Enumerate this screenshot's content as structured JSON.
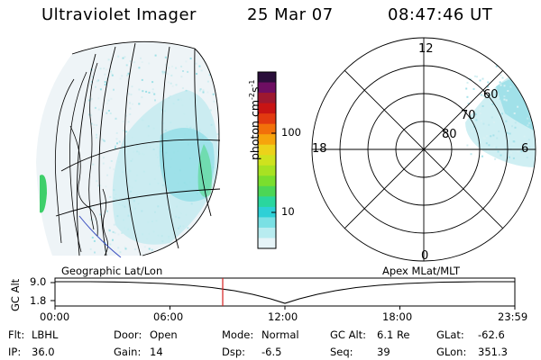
{
  "header": {
    "title": "Ultraviolet Imager",
    "date": "25 Mar 07",
    "time": "08:47:46 UT"
  },
  "colorbar": {
    "label": "photon cm",
    "unit_sup_1": "-2",
    "unit_mid": "s",
    "unit_sup_2": "-1",
    "ticks": [
      "100",
      "10"
    ],
    "colors": [
      "#2a0e3a",
      "#6e0e62",
      "#9e1830",
      "#c81414",
      "#e23a10",
      "#f2700a",
      "#f6a40c",
      "#ecd21a",
      "#cfe21e",
      "#a8e222",
      "#7ade2e",
      "#4cd656",
      "#2ad69e",
      "#2ed0d6",
      "#7ae0e4",
      "#b8ecf0",
      "#e6f4f8"
    ]
  },
  "polar": {
    "mlt_labels": [
      "12",
      "18",
      "6",
      "0"
    ],
    "mlat_labels": [
      "60",
      "70",
      "80"
    ]
  },
  "timeline": {
    "left_label": "Geographic Lat/Lon",
    "right_label": "Apex MLat/MLT",
    "y_axis_label": "GC Alt",
    "y_ticks": [
      "9.0",
      "1.8"
    ],
    "x_ticks": [
      "00:00",
      "06:00",
      "12:00",
      "18:00",
      "23:59"
    ],
    "marker_time": "08:47:46",
    "marker_color": "#d42020"
  },
  "info": {
    "flt_label": "Flt:",
    "flt_value": "LBHL",
    "ip_label": "IP:",
    "ip_value": "36.0",
    "door_label": "Door:",
    "door_value": "Open",
    "gain_label": "Gain:",
    "gain_value": "14",
    "mode_label": "Mode:",
    "mode_value": "Normal",
    "dsp_label": "Dsp:",
    "dsp_value": "-6.5",
    "gcalt_label": "GC Alt:",
    "gcalt_value": "6.1 Re",
    "seq_label": "Seq:",
    "seq_value": "39",
    "glat_label": "GLat:",
    "glat_value": "-62.6",
    "glon_label": "GLon:",
    "glon_value": "351.3"
  }
}
